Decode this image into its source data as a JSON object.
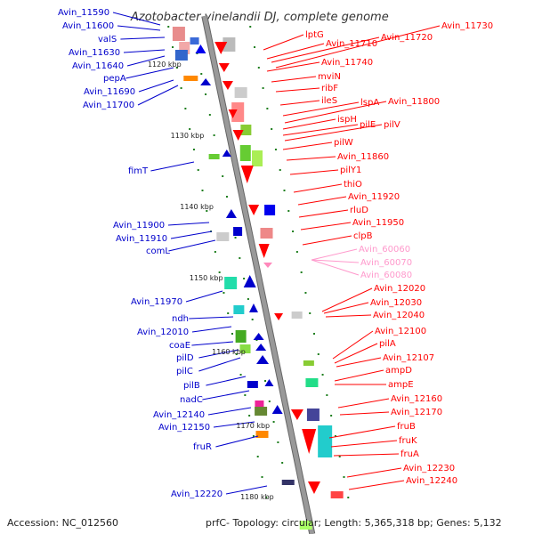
{
  "title": "Azotobacter vinelandii DJ, complete genome",
  "accession": "Accession: NC_012560",
  "topology": "prfC- Topology: circular; Length: 5,365,318 bp; Genes: 5,132",
  "scale_labels": [
    "1120 kbp",
    "1130 kbp",
    "1140 kbp",
    "1150 kbp",
    "1160 kbp",
    "1170 kbp",
    "1180 kbp"
  ],
  "colors": {
    "reverse_strand": "#0000cc",
    "forward_strand": "#ff0000",
    "faded": "#ff99cc",
    "backbone": "#999999",
    "tick": "#1e7e1e"
  },
  "left_labels": [
    "Avin_11590",
    "Avin_11600",
    "valS",
    "Avin_11630",
    "Avin_11640",
    "pepA",
    "Avin_11690",
    "Avin_11700",
    "fimT",
    "Avin_11900",
    "Avin_11910",
    "comL",
    "Avin_11970",
    "ndh",
    "Avin_12010",
    "coaE",
    "pilD",
    "pilC",
    "pilB",
    "nadC",
    "Avin_12140",
    "Avin_12150",
    "fruR",
    "Avin_12220"
  ],
  "right_labels": [
    "lptG",
    "Avin_11710",
    "Avin_11720",
    "Avin_11730",
    "Avin_11740",
    "mviN",
    "ribF",
    "ileS",
    "lspA",
    "Avin_11800",
    "ispH",
    "pilE",
    "pilV",
    "pilW",
    "Avin_11860",
    "pilY1",
    "thiO",
    "Avin_11920",
    "rluD",
    "Avin_11950",
    "clpB",
    "Avin_60060",
    "Avin_60070",
    "Avin_60080",
    "Avin_12020",
    "Avin_12030",
    "Avin_12040",
    "Avin_12100",
    "pilA",
    "Avin_12107",
    "ampD",
    "ampE",
    "Avin_12160",
    "Avin_12170",
    "fruB",
    "fruK",
    "fruA",
    "Avin_12230",
    "Avin_12240"
  ]
}
